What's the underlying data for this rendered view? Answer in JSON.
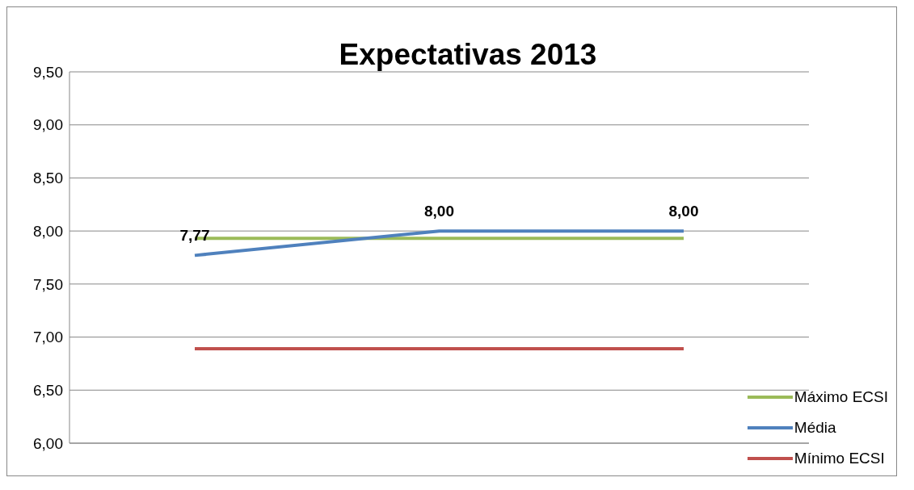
{
  "chart_data": {
    "type": "line",
    "title": "Expectativas 2013",
    "categories": [
      null,
      null,
      null
    ],
    "series": [
      {
        "name": "Máximo ECSI",
        "color": "#9bbb59",
        "values": [
          7.93,
          7.93,
          7.93
        ]
      },
      {
        "name": "Média",
        "color": "#4f81bd",
        "values": [
          7.77,
          8.0,
          8.0
        ],
        "value_labels": [
          "7,77",
          "8,00",
          "8,00"
        ]
      },
      {
        "name": "Mínimo ECSI",
        "color": "#c0504d",
        "values": [
          6.89,
          6.89,
          6.89
        ]
      }
    ],
    "ylim": [
      6,
      9.5
    ],
    "yticks": [
      {
        "value": 6,
        "label": "6,00"
      },
      {
        "value": 6.5,
        "label": "6,50"
      },
      {
        "value": 7,
        "label": "7,00"
      },
      {
        "value": 7.5,
        "label": "7,50"
      },
      {
        "value": 8,
        "label": "8,00"
      },
      {
        "value": 8.5,
        "label": "8,50"
      },
      {
        "value": 9,
        "label": "9,00"
      },
      {
        "value": 9.5,
        "label": "9,50"
      }
    ],
    "grid": "y",
    "legend": "bottom right",
    "marker": "none",
    "line_style": "solid"
  }
}
